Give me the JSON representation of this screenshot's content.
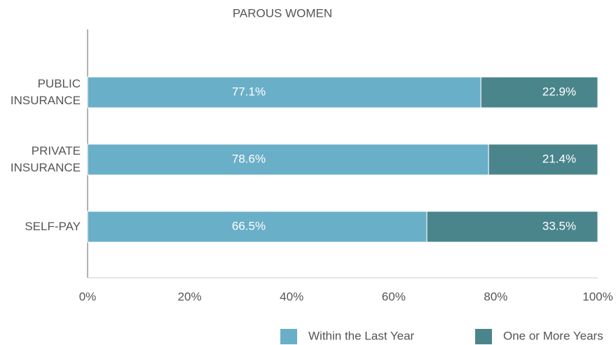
{
  "chart_data": {
    "type": "stacked-barh",
    "title": "PAROUS WOMEN",
    "categories": [
      "PUBLIC\nINSURANCE",
      "PRIVATE\nINSURANCE",
      "SELF-PAY"
    ],
    "series": [
      {
        "name": "Within the Last Year",
        "color": "#6aafc8",
        "values": [
          77.1,
          78.6,
          66.5
        ],
        "value_labels": [
          "77.1%",
          "78.6%",
          "66.5%"
        ]
      },
      {
        "name": "One or More Years",
        "color": "#4a858c",
        "values": [
          22.9,
          21.4,
          33.5
        ],
        "value_labels": [
          "22.9%",
          "21.4%",
          "33.5%"
        ]
      }
    ],
    "xlim": [
      0,
      100
    ],
    "xticks": [
      {
        "value": 0,
        "label": "0%"
      },
      {
        "value": 20,
        "label": "20%"
      },
      {
        "value": 40,
        "label": "40%"
      },
      {
        "value": 60,
        "label": "60%"
      },
      {
        "value": 80,
        "label": "80%"
      },
      {
        "value": 100,
        "label": "100%"
      }
    ],
    "legend": "bottom-right"
  }
}
